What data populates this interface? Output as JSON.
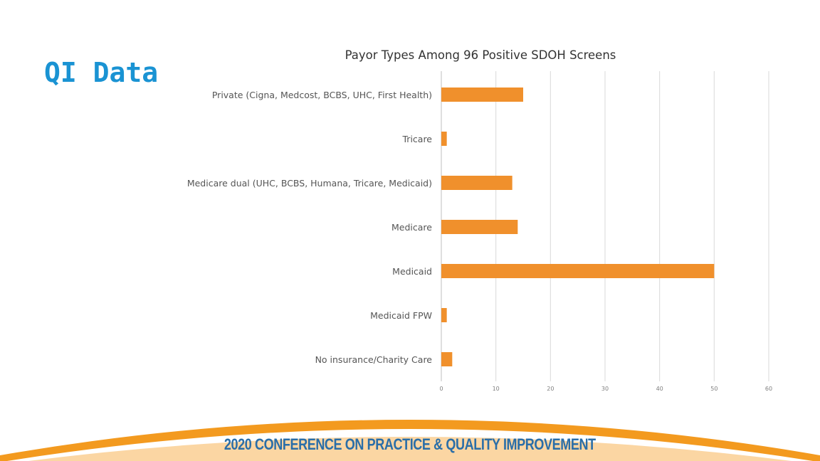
{
  "slide": {
    "title": "QI Data"
  },
  "footer": {
    "banner_text": "2020 CONFERENCE ON PRACTICE & QUALITY IMPROVEMENT"
  },
  "colors": {
    "title": "#1a93d3",
    "bar": "#f0902c",
    "gridline": "#d9d9d9",
    "footer_text": "#2a6ea8",
    "swoosh": "#f39a1f"
  },
  "chart_data": {
    "type": "bar",
    "orientation": "horizontal",
    "title": "Payor Types Among 96 Positive SDOH Screens",
    "categories": [
      "Private (Cigna, Medcost, BCBS, UHC, First Health)",
      "Tricare",
      "Medicare dual (UHC, BCBS, Humana, Tricare, Medicaid)",
      "Medicare",
      "Medicaid",
      "Medicaid FPW",
      "No insurance/Charity Care"
    ],
    "values": [
      15,
      1,
      13,
      14,
      50,
      1,
      2
    ],
    "xlim": [
      0,
      60
    ],
    "xticks": [
      0,
      10,
      20,
      30,
      40,
      50,
      60
    ],
    "xlabel": "",
    "ylabel": "",
    "grid": true,
    "legend": "none"
  }
}
